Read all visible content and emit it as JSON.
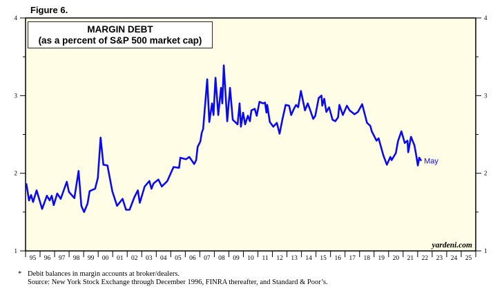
{
  "figure_label": "Figure 6.",
  "footnote": "Debit balances in margin accounts at broker/dealers.",
  "footnote_marker": "*",
  "source": "Source: New York Stock Exchange through December 1996, FINRA thereafter, and Standard & Poor’s.",
  "colors": {
    "line": "#0a0af0",
    "plot_bg": "#fffde6",
    "axis": "#000000"
  },
  "chart_data": {
    "type": "line",
    "title": "MARGIN DEBT",
    "subtitle": "(as a percent of S&P 500 market cap)",
    "xlabel": "",
    "ylabel": "",
    "ylim": [
      1,
      4
    ],
    "yticks": [
      1,
      2,
      3,
      4
    ],
    "xlim": [
      1995,
      2026
    ],
    "xtick_labels": [
      "95",
      "96",
      "97",
      "98",
      "99",
      "00",
      "01",
      "02",
      "03",
      "04",
      "05",
      "06",
      "07",
      "08",
      "09",
      "10",
      "11",
      "12",
      "13",
      "14",
      "15",
      "16",
      "17",
      "18",
      "19",
      "20",
      "21",
      "22",
      "23",
      "24",
      "25"
    ],
    "annotation": "May",
    "watermark": "yardeni.com",
    "grid": false,
    "series": [
      {
        "name": "Margin debt (% of S&P 500 market cap)",
        "x": [
          1995.05,
          1995.24,
          1995.38,
          1995.52,
          1995.76,
          1996.14,
          1996.47,
          1996.66,
          1996.8,
          1996.94,
          1997.18,
          1997.42,
          1997.84,
          1997.99,
          1998.36,
          1998.65,
          1998.84,
          1999.03,
          1999.27,
          1999.41,
          1999.79,
          1999.98,
          2000.17,
          2000.36,
          2000.64,
          2000.73,
          2000.97,
          2001.3,
          2001.68,
          2001.92,
          2002.16,
          2002.49,
          2002.73,
          2002.87,
          2003.2,
          2003.53,
          2003.67,
          2003.82,
          2004.15,
          2004.38,
          2004.76,
          2005.19,
          2005.57,
          2005.66,
          2006.04,
          2006.28,
          2006.61,
          2006.75,
          2006.85,
          2007.04,
          2007.13,
          2007.23,
          2007.51,
          2007.65,
          2007.84,
          2007.94,
          2008.08,
          2008.27,
          2008.46,
          2008.55,
          2008.65,
          2008.89,
          2009.08,
          2009.27,
          2009.6,
          2009.74,
          2009.83,
          2009.98,
          2010.12,
          2010.31,
          2010.45,
          2010.55,
          2010.78,
          2010.92,
          2011.11,
          2011.35,
          2011.49,
          2011.59,
          2011.64,
          2011.82,
          2012.06,
          2012.3,
          2012.49,
          2012.68,
          2012.91,
          2013.15,
          2013.29,
          2013.48,
          2013.63,
          2013.77,
          2013.96,
          2014.24,
          2014.43,
          2014.57,
          2014.81,
          2014.95,
          2015.19,
          2015.38,
          2015.43,
          2015.57,
          2015.71,
          2015.9,
          2016.14,
          2016.33,
          2016.52,
          2016.61,
          2016.85,
          2017.13,
          2017.32,
          2017.65,
          2017.89,
          2018.18,
          2018.51,
          2018.74,
          2018.84,
          2019.17,
          2019.31,
          2019.64,
          2019.88,
          2020.12,
          2020.21,
          2020.5,
          2020.64,
          2020.88,
          2021.11,
          2021.3,
          2021.35,
          2021.54,
          2021.78,
          2021.92,
          2022.01,
          2022.11,
          2022.25
        ],
        "y": [
          1.87,
          1.65,
          1.72,
          1.63,
          1.78,
          1.54,
          1.71,
          1.65,
          1.71,
          1.59,
          1.74,
          1.67,
          1.89,
          1.76,
          1.68,
          2.03,
          1.58,
          1.5,
          1.61,
          1.77,
          1.8,
          1.94,
          2.46,
          2.11,
          2.1,
          2.01,
          1.77,
          1.58,
          1.67,
          1.53,
          1.53,
          1.69,
          1.78,
          1.62,
          1.83,
          1.9,
          1.8,
          1.87,
          1.92,
          1.83,
          1.9,
          2.08,
          2.07,
          2.2,
          2.18,
          2.21,
          2.12,
          2.17,
          2.34,
          2.41,
          2.52,
          2.57,
          3.21,
          2.66,
          2.9,
          2.75,
          3.23,
          2.75,
          3.1,
          2.9,
          3.39,
          2.67,
          3.1,
          2.69,
          2.63,
          2.9,
          2.6,
          2.78,
          2.63,
          2.74,
          2.67,
          2.81,
          2.83,
          2.74,
          2.92,
          2.9,
          2.91,
          2.78,
          2.88,
          2.66,
          2.6,
          2.65,
          2.51,
          2.69,
          2.88,
          2.87,
          2.75,
          2.83,
          2.88,
          2.85,
          3.06,
          2.81,
          2.9,
          2.83,
          2.7,
          2.74,
          2.97,
          3.0,
          2.87,
          2.96,
          2.79,
          2.85,
          2.69,
          2.67,
          2.72,
          2.88,
          2.75,
          2.87,
          2.81,
          2.76,
          2.79,
          2.89,
          2.65,
          2.61,
          2.54,
          2.42,
          2.45,
          2.23,
          2.11,
          2.21,
          2.17,
          2.26,
          2.41,
          2.54,
          2.39,
          2.42,
          2.27,
          2.47,
          2.36,
          2.21,
          2.1,
          2.2,
          2.16
        ]
      }
    ]
  }
}
